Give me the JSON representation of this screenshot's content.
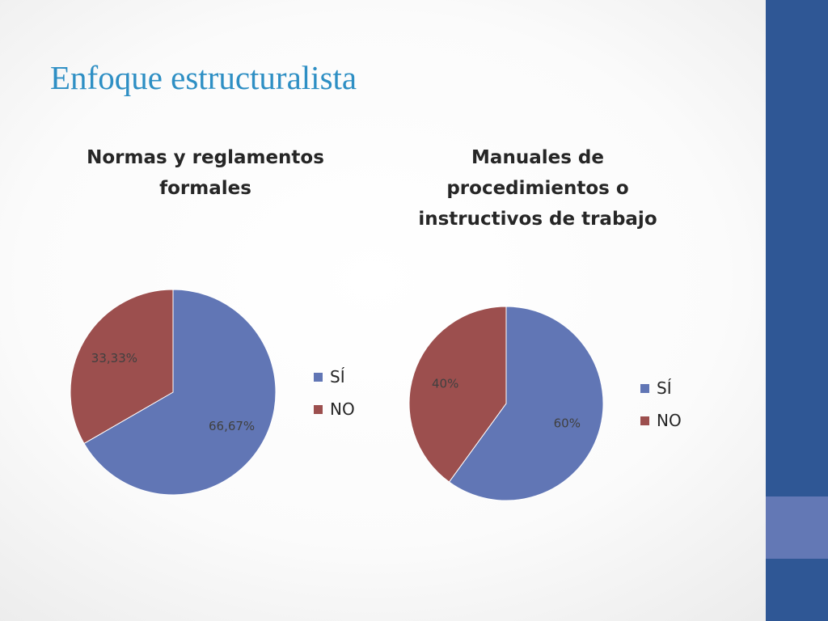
{
  "slide": {
    "title": "Enfoque estructuralista"
  },
  "colors": {
    "title": "#2e8fc4",
    "side_bar": "#2f5795",
    "side_bar_accent": "#6378b5",
    "si": "#6176b5",
    "no": "#9c4f4e"
  },
  "chart_data": [
    {
      "type": "pie",
      "title": "Normas y reglamentos formales",
      "categories": [
        "SÍ",
        "NO"
      ],
      "values": [
        66.67,
        33.33
      ],
      "labels": [
        "66,67%",
        "33,33%"
      ],
      "colors": [
        "#6176b5",
        "#9c4f4e"
      ],
      "legend": "right"
    },
    {
      "type": "pie",
      "title": "Manuales de procedimientos o instructivos de trabajo",
      "categories": [
        "SÍ",
        "NO"
      ],
      "values": [
        60,
        40
      ],
      "labels": [
        "60%",
        "40%"
      ],
      "colors": [
        "#6176b5",
        "#9c4f4e"
      ],
      "legend": "right"
    }
  ]
}
